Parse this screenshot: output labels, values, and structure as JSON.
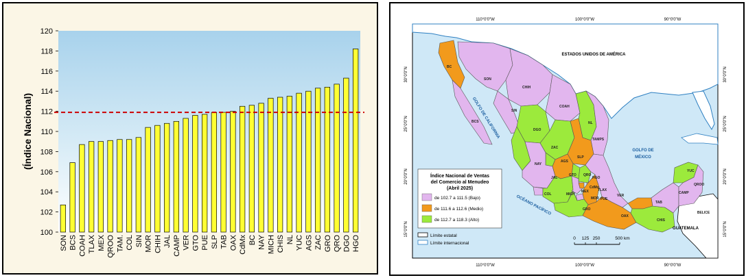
{
  "chart_data": {
    "type": "bar",
    "title": "",
    "ylabel": "(Índice Nacional)",
    "xlabel": "",
    "ylim": [
      100,
      120
    ],
    "yticks": [
      100,
      102,
      104,
      106,
      108,
      110,
      112,
      114,
      116,
      118,
      120
    ],
    "reference_line": 111.9,
    "bar_color": "#ffff33",
    "reference_line_color": "#cc0000",
    "categories": [
      "SON",
      "BCS",
      "COAH",
      "TLAX",
      "MEX",
      "QROO",
      "TAM.",
      "COL",
      "SIN",
      "MOR",
      "CHIH",
      "JAL",
      "CAMP",
      "VER",
      "GTO",
      "PUE",
      "SLP",
      "TAB",
      "OAX",
      "CdMx",
      "BC",
      "NAY",
      "MICH",
      "CHIS",
      "NL",
      "YUC",
      "AGS",
      "ZAC",
      "GRO",
      "QRO",
      "DGO",
      "HGO"
    ],
    "values": [
      102.7,
      106.9,
      108.7,
      109.0,
      109.0,
      109.1,
      109.2,
      109.2,
      109.4,
      110.4,
      110.6,
      110.8,
      111.0,
      111.3,
      111.6,
      111.7,
      111.9,
      111.9,
      112.0,
      112.5,
      112.6,
      112.8,
      113.3,
      113.4,
      113.5,
      113.8,
      114.0,
      114.3,
      114.4,
      114.7,
      115.3,
      118.2
    ],
    "grid": false,
    "legend": "none"
  },
  "map": {
    "coords_top": [
      "110°0'0\"W",
      "100°0'0\"W",
      "90°0'0\"W"
    ],
    "coords_bottom": [
      "110°0'0\"W",
      "100°0'0\"W",
      "90°0'0\"W"
    ],
    "coords_left": [
      "30°0'0\"N",
      "25°0'0\"N",
      "20°0'0\"N",
      "15°0'0\"N"
    ],
    "coords_right": [
      "30°0'0\"N",
      "25°0'0\"N",
      "20°0'0\"N",
      "15°0'0\"N"
    ],
    "labels": {
      "usa": "ESTADOS UNIDOS DE AMÉRICA",
      "gulf_1": "GOLFO DE",
      "gulf_2": "MÉXICO",
      "gulf_california": "GOLFO DE CALIFORNIA",
      "pacific": "OCÉANO PACÍFICO",
      "guatemala": "GUATEMALA",
      "belice": "BELICE"
    },
    "states": {
      "bc": "BC",
      "son": "SON",
      "chih": "CHIH",
      "coah": "COAH",
      "bcs": "BCS",
      "sin": "SIN",
      "dgo": "DGO",
      "nl": "NL",
      "tamps": "TAMPS",
      "zac": "ZAC",
      "slp": "SLP",
      "nay": "NAY",
      "ags": "AGS",
      "jal": "JAL",
      "gto": "GTO",
      "qro": "QRO",
      "hgo": "HGO",
      "col": "COL",
      "mich": "MICH",
      "mex": "MEX",
      "cdmx": "CdMx",
      "tlax": "TLAX",
      "mor": "MOR",
      "pue": "PUE",
      "ver": "VER",
      "gro": "GRO",
      "oax": "OAX",
      "tab": "TAB",
      "chis": "CHIS",
      "camp": "CAMP",
      "yuc": "YUC",
      "qroo": "QROO"
    },
    "legend": {
      "title_1": "Índice Nacional de Ventas",
      "title_2": "del Comercio al Menudeo",
      "title_3": "(Abril 2025)",
      "items": [
        {
          "label": "de 102.7 a 111.5 (Bajo)",
          "color": "#e2b6ee"
        },
        {
          "label": "de 111.6 a 112.6 (Medio)",
          "color": "#f29a1c"
        },
        {
          "label": "de 112.7 a 118.3 (Alto)",
          "color": "#9cea3c"
        }
      ]
    },
    "boundaries": {
      "estatal": "Límite estatal",
      "internacional": "Límite internacional"
    },
    "scale": {
      "ticks": [
        "0",
        "125",
        "250",
        "500 km"
      ]
    }
  }
}
